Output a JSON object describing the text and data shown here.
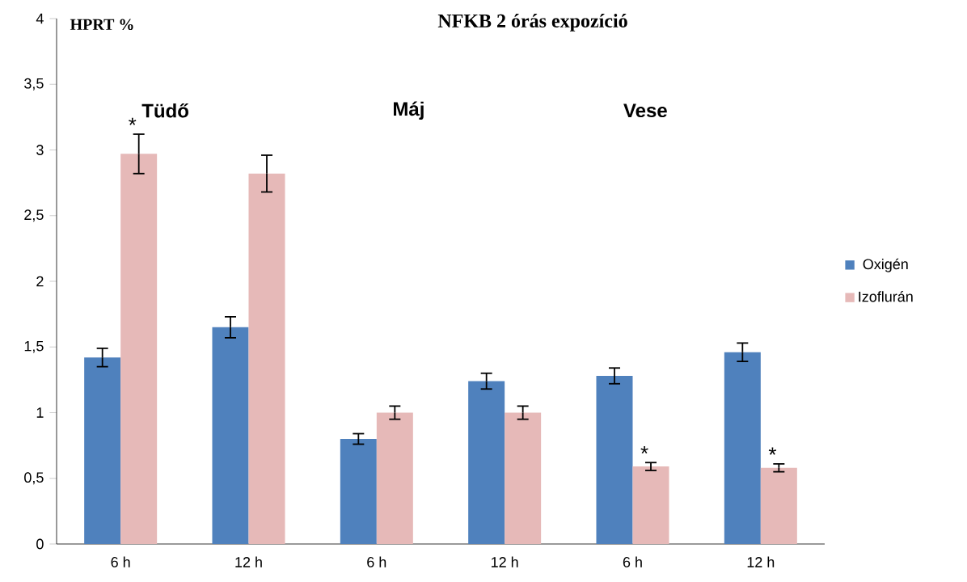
{
  "chart_data": {
    "type": "bar",
    "title": "NFKB 2 órás expozíció",
    "ylabel": "HPRT %",
    "categories": [
      "6 h",
      "12 h",
      "6 h",
      "12 h",
      "6 h",
      "12 h"
    ],
    "series": [
      {
        "name": "Oxigén",
        "color": "#4f81bd",
        "values": [
          1.42,
          1.65,
          0.8,
          1.24,
          1.28,
          1.46
        ],
        "errors": [
          0.07,
          0.08,
          0.04,
          0.06,
          0.06,
          0.07
        ]
      },
      {
        "name": "Izoflurán",
        "color": "#e6b9b8",
        "values": [
          2.97,
          2.82,
          1.0,
          1.0,
          0.59,
          0.58
        ],
        "errors": [
          0.15,
          0.14,
          0.05,
          0.05,
          0.03,
          0.03
        ]
      }
    ],
    "ylim": [
      0,
      4
    ],
    "yticks": [
      0,
      {
        "value": 0.5,
        "label": "0,5"
      },
      1,
      {
        "value": 1.5,
        "label": "1,5"
      },
      2,
      {
        "value": 2.5,
        "label": "2,5"
      },
      3,
      {
        "value": 3.5,
        "label": "3,5"
      },
      4
    ],
    "annotations": [
      "Tüdő",
      "Máj",
      "Vese",
      "*",
      "*",
      "*"
    ],
    "legend": "right",
    "grid": false
  }
}
